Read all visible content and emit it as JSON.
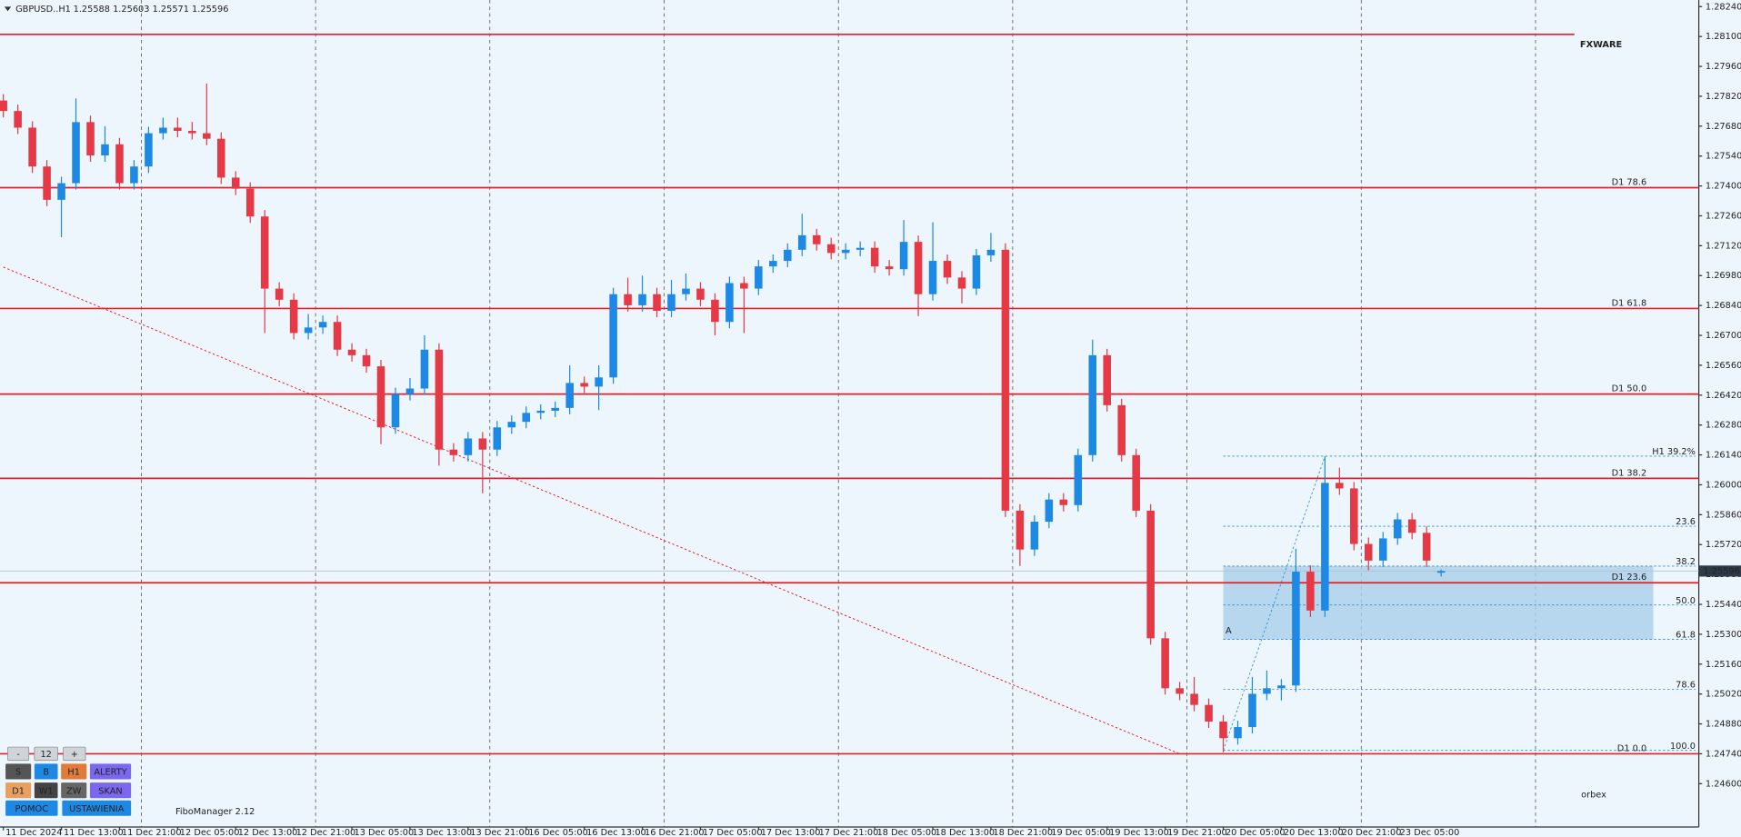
{
  "header": {
    "symbol": "GBPUSD..H1",
    "quote": "1.25588 1.25603 1.25571 1.25596"
  },
  "indicator": "FiboManager 2.12",
  "logos": {
    "top": "FXWARE",
    "bottom": "orbex"
  },
  "controls": {
    "stepper": [
      "-",
      "12",
      "+"
    ],
    "buttons": [
      [
        "S",
        "B",
        "H1",
        "ALERTY"
      ],
      [
        "D1",
        "W1",
        "ZW",
        "SKAN"
      ],
      [
        "POMOC",
        "USTAWIENIA"
      ]
    ]
  },
  "chart_data": {
    "type": "candlestick",
    "up_color": "#1e88e5",
    "down_color": "#e53946",
    "grid": "vertical",
    "ylim": [
      1.24397,
      1.28271
    ],
    "yticks": [
      {
        "value": 1.246,
        "label": "1.24600"
      },
      {
        "value": 1.2474,
        "label": "1.24740"
      },
      {
        "value": 1.2488,
        "label": "1.24880"
      },
      {
        "value": 1.2502,
        "label": "1.25020"
      },
      {
        "value": 1.2516,
        "label": "1.25160"
      },
      {
        "value": 1.253,
        "label": "1.25300"
      },
      {
        "value": 1.2544,
        "label": "1.25440"
      },
      {
        "value": 1.2558,
        "label": "1.25580"
      },
      {
        "value": 1.2572,
        "label": "1.25720"
      },
      {
        "value": 1.2586,
        "label": "1.25860"
      },
      {
        "value": 1.26,
        "label": "1.26000"
      },
      {
        "value": 1.2614,
        "label": "1.26140"
      },
      {
        "value": 1.2628,
        "label": "1.26280"
      },
      {
        "value": 1.2642,
        "label": "1.26420"
      },
      {
        "value": 1.2656,
        "label": "1.26560"
      },
      {
        "value": 1.267,
        "label": "1.26700"
      },
      {
        "value": 1.2684,
        "label": "1.26840"
      },
      {
        "value": 1.2698,
        "label": "1.26980"
      },
      {
        "value": 1.2712,
        "label": "1.27120"
      },
      {
        "value": 1.2726,
        "label": "1.27260"
      },
      {
        "value": 1.274,
        "label": "1.27400"
      },
      {
        "value": 1.2754,
        "label": "1.27540"
      },
      {
        "value": 1.2768,
        "label": "1.27680"
      },
      {
        "value": 1.2782,
        "label": "1.27820"
      },
      {
        "value": 1.2796,
        "label": "1.27960"
      },
      {
        "value": 1.281,
        "label": "1.28100"
      },
      {
        "value": 1.2824,
        "label": "1.28240"
      }
    ],
    "categories": [
      "11 Dec 2024",
      null,
      null,
      null,
      "11 Dec 13:00",
      null,
      null,
      null,
      "11 Dec 21:00",
      null,
      null,
      null,
      "12 Dec 05:00",
      null,
      null,
      null,
      "12 Dec 13:00",
      null,
      null,
      null,
      "12 Dec 21:00",
      null,
      null,
      null,
      "13 Dec 05:00",
      null,
      null,
      null,
      "13 Dec 13:00",
      null,
      null,
      null,
      "13 Dec 21:00",
      null,
      null,
      null,
      "16 Dec 05:00",
      null,
      null,
      null,
      "16 Dec 13:00",
      null,
      null,
      null,
      "16 Dec 21:00",
      null,
      null,
      null,
      "17 Dec 05:00",
      null,
      null,
      null,
      "17 Dec 13:00",
      null,
      null,
      null,
      "17 Dec 21:00",
      null,
      null,
      null,
      "18 Dec 05:00",
      null,
      null,
      null,
      "18 Dec 13:00",
      null,
      null,
      null,
      "18 Dec 21:00",
      null,
      null,
      null,
      "19 Dec 05:00",
      null,
      null,
      null,
      "19 Dec 13:00",
      null,
      null,
      null,
      "19 Dec 21:00",
      null,
      null,
      null,
      "20 Dec 05:00",
      null,
      null,
      null,
      "20 Dec 13:00",
      null,
      null,
      null,
      "20 Dec 21:00",
      null,
      null,
      null,
      "23 Dec 05:00",
      null,
      null,
      null
    ],
    "open": [
      1.278,
      1.27751,
      1.27673,
      1.27491,
      1.27335,
      1.27413,
      1.27699,
      1.27543,
      1.27595,
      1.27413,
      1.27491,
      1.27647,
      1.27673,
      1.27658,
      1.27647,
      1.27621,
      1.27439,
      1.27387,
      1.27257,
      1.26919,
      1.26867,
      1.26711,
      1.26737,
      1.26763,
      1.26633,
      1.26607,
      1.26555,
      1.26269,
      1.26425,
      1.26451,
      1.26633,
      1.26165,
      1.26139,
      1.26217,
      1.26165,
      1.26269,
      1.26295,
      1.26337,
      1.26347,
      1.2636,
      1.26477,
      1.2646,
      1.26503,
      1.26893,
      1.26841,
      1.26893,
      1.26815,
      1.26893,
      1.26919,
      1.26867,
      1.26763,
      1.26945,
      1.26919,
      1.27023,
      1.27049,
      1.27101,
      1.27169,
      1.27127,
      1.27086,
      1.27101,
      1.2711,
      1.27023,
      1.2701,
      1.27138,
      1.26893,
      1.27049,
      1.26971,
      1.26919,
      1.27075,
      1.27101,
      1.25879,
      1.25697,
      1.25827,
      1.25931,
      1.25905,
      1.26139,
      1.26607,
      1.26373,
      1.26139,
      1.25879,
      1.25281,
      1.25047,
      1.25021,
      1.24969,
      1.24891,
      1.24813,
      1.24865,
      1.25021,
      1.25047,
      1.2506,
      1.25593,
      1.25411,
      1.26009,
      1.25983,
      1.25723,
      1.25645,
      1.25749,
      1.25838,
      1.25775,
      1.25588
    ],
    "high": [
      1.2783,
      1.27781,
      1.27703,
      1.27521,
      1.27443,
      1.2781,
      1.27729,
      1.2768,
      1.27625,
      1.27521,
      1.27677,
      1.2772,
      1.2772,
      1.277,
      1.2788,
      1.27651,
      1.27469,
      1.27417,
      1.27287,
      1.26949,
      1.26897,
      1.268,
      1.26793,
      1.26793,
      1.26663,
      1.26637,
      1.26585,
      1.26455,
      1.265,
      1.267,
      1.26663,
      1.26195,
      1.26247,
      1.26247,
      1.26299,
      1.26325,
      1.26367,
      1.26377,
      1.2639,
      1.2656,
      1.26507,
      1.2656,
      1.26923,
      1.2697,
      1.2698,
      1.26923,
      1.2696,
      1.2699,
      1.26949,
      1.26897,
      1.26975,
      1.26975,
      1.27053,
      1.27079,
      1.27131,
      1.2727,
      1.27199,
      1.27157,
      1.27131,
      1.2714,
      1.2714,
      1.27053,
      1.2724,
      1.27168,
      1.2723,
      1.27079,
      1.27001,
      1.27105,
      1.2718,
      1.27131,
      1.25909,
      1.25857,
      1.25961,
      1.25961,
      1.26169,
      1.2668,
      1.26637,
      1.26403,
      1.26169,
      1.25909,
      1.25311,
      1.25077,
      1.251,
      1.24999,
      1.24921,
      1.24895,
      1.251,
      1.2513,
      1.2509,
      1.257,
      1.25623,
      1.26134,
      1.2608,
      1.26013,
      1.25753,
      1.25779,
      1.25868,
      1.25868,
      1.25805,
      1.25603
    ],
    "low": [
      1.27721,
      1.27643,
      1.27461,
      1.27305,
      1.2716,
      1.27383,
      1.27513,
      1.27513,
      1.27383,
      1.27383,
      1.27461,
      1.27617,
      1.27628,
      1.27617,
      1.27591,
      1.27409,
      1.27357,
      1.27227,
      1.26711,
      1.26837,
      1.26681,
      1.26681,
      1.26707,
      1.26603,
      1.26577,
      1.26525,
      1.2619,
      1.26239,
      1.26395,
      1.26421,
      1.2609,
      1.26109,
      1.26109,
      1.2596,
      1.26135,
      1.26239,
      1.26265,
      1.26307,
      1.26317,
      1.2633,
      1.2643,
      1.2635,
      1.26473,
      1.26811,
      1.26811,
      1.26785,
      1.26785,
      1.26863,
      1.26837,
      1.267,
      1.26733,
      1.26711,
      1.26889,
      1.26993,
      1.27019,
      1.27071,
      1.27097,
      1.27056,
      1.27056,
      1.27071,
      1.26993,
      1.2698,
      1.2698,
      1.2679,
      1.26863,
      1.26941,
      1.2685,
      1.26889,
      1.27045,
      1.25849,
      1.2562,
      1.25667,
      1.25797,
      1.25875,
      1.25875,
      1.26109,
      1.26343,
      1.26109,
      1.25849,
      1.25251,
      1.25017,
      1.24991,
      1.24939,
      1.24861,
      1.24747,
      1.24783,
      1.24835,
      1.24991,
      1.2499,
      1.2503,
      1.25381,
      1.25381,
      1.25953,
      1.25693,
      1.256,
      1.25615,
      1.25719,
      1.25745,
      1.25615,
      1.25571
    ],
    "close": [
      1.27751,
      1.27673,
      1.27491,
      1.27335,
      1.27413,
      1.27699,
      1.27543,
      1.27595,
      1.27413,
      1.27491,
      1.27647,
      1.27673,
      1.27658,
      1.27647,
      1.27621,
      1.27439,
      1.27387,
      1.27257,
      1.26919,
      1.26867,
      1.26711,
      1.26737,
      1.26763,
      1.26633,
      1.26607,
      1.26555,
      1.26269,
      1.26425,
      1.26451,
      1.26633,
      1.26165,
      1.26139,
      1.26217,
      1.26165,
      1.26269,
      1.26295,
      1.26337,
      1.26347,
      1.2636,
      1.26477,
      1.2646,
      1.26503,
      1.26893,
      1.26841,
      1.26893,
      1.26815,
      1.26893,
      1.26919,
      1.26867,
      1.26763,
      1.26945,
      1.26919,
      1.27023,
      1.27049,
      1.27101,
      1.27169,
      1.27127,
      1.27086,
      1.27101,
      1.2711,
      1.27023,
      1.2701,
      1.27138,
      1.26893,
      1.27049,
      1.26971,
      1.26919,
      1.27075,
      1.27101,
      1.25879,
      1.25697,
      1.25827,
      1.25931,
      1.25905,
      1.26139,
      1.26607,
      1.26373,
      1.26139,
      1.25879,
      1.25281,
      1.25047,
      1.25021,
      1.24969,
      1.24891,
      1.24813,
      1.24865,
      1.25021,
      1.25047,
      1.2506,
      1.25593,
      1.25411,
      1.26009,
      1.25983,
      1.25723,
      1.25645,
      1.25749,
      1.25838,
      1.25775,
      1.25645,
      1.25596
    ],
    "last_price": 1.25596,
    "levels": [
      {
        "value": 1.2811
      },
      {
        "value": 1.27392,
        "label": "D1 78.6"
      },
      {
        "value": 1.26826,
        "label": "D1 61.8"
      },
      {
        "value": 1.26425,
        "label": "D1 50.0"
      },
      {
        "value": 1.2603,
        "label": "D1 38.2"
      },
      {
        "value": 1.25541,
        "label": "D1 23.6"
      },
      {
        "value": 1.2474,
        "label": "D1 0.0"
      }
    ],
    "level_color": "#e0202a",
    "trendline": {
      "x": [
        0,
        81
      ],
      "y": [
        1.2702,
        1.2474
      ]
    },
    "fibo": {
      "x": [
        84,
        91
      ],
      "y": [
        1.24756,
        1.26134
      ],
      "color": "#2a8ad4",
      "levels": [
        {
          "value": 1.26134,
          "label": "H1 39.2%"
        },
        {
          "value": 1.25806,
          "label": "23.6"
        },
        {
          "value": 1.25619,
          "label": "38.2"
        },
        {
          "value": 1.25437,
          "label": "50.0"
        },
        {
          "value": 1.25276,
          "label": "61.8"
        },
        {
          "value": 1.25042,
          "label": "78.6"
        },
        {
          "value": 1.24756,
          "label": "100.0"
        }
      ],
      "zone": [
        1.25619,
        1.25276
      ],
      "zone_label": "A"
    }
  }
}
